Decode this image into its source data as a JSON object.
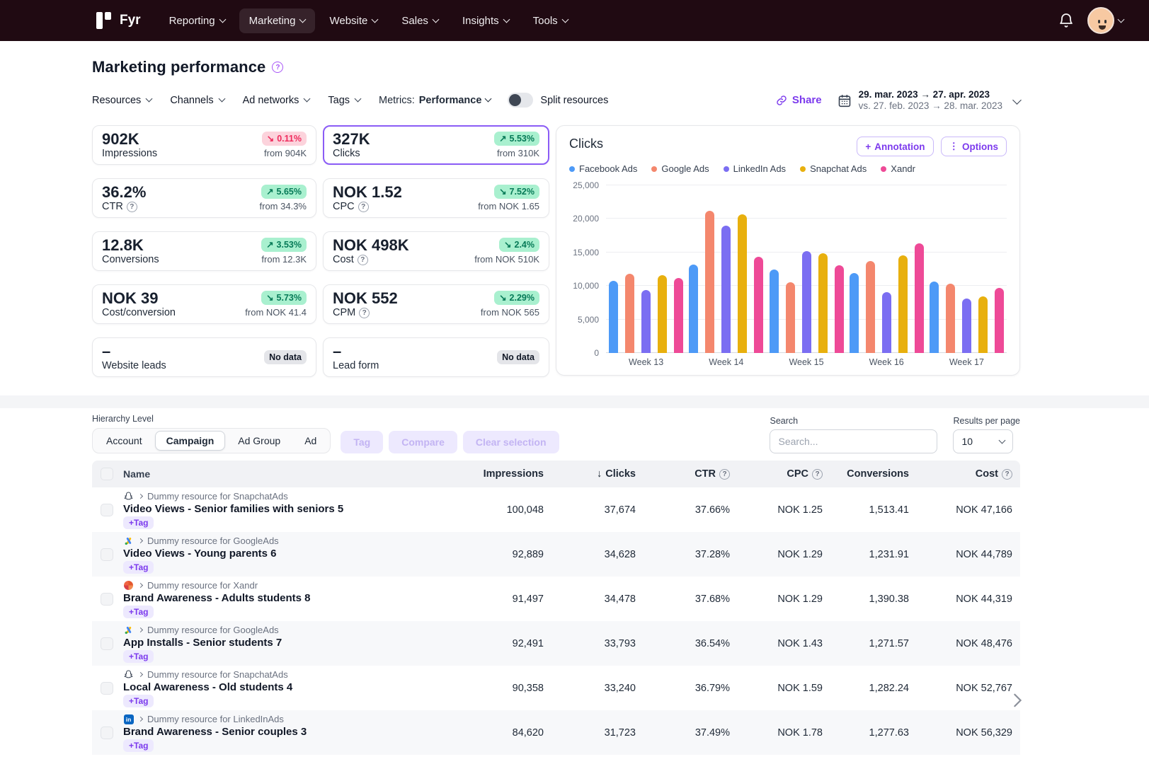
{
  "nav": {
    "brand": "Fyr",
    "items": [
      {
        "label": "Reporting"
      },
      {
        "label": "Marketing",
        "active": true
      },
      {
        "label": "Website"
      },
      {
        "label": "Sales"
      },
      {
        "label": "Insights"
      },
      {
        "label": "Tools"
      }
    ]
  },
  "page": {
    "title": "Marketing performance"
  },
  "filters": {
    "dropdowns": [
      "Resources",
      "Channels",
      "Ad networks",
      "Tags"
    ],
    "metrics_label": "Metrics:",
    "metrics_value": "Performance",
    "split_label": "Split resources",
    "share_label": "Share",
    "date_primary": "29. mar. 2023 → 27. apr. 2023",
    "date_secondary": "vs. 27. feb. 2023 → 28. mar. 2023"
  },
  "kpis": {
    "col1": [
      {
        "value": "902K",
        "label": "Impressions",
        "badge": "0.11%",
        "dir": "down",
        "tone": "red",
        "from": "from 904K"
      },
      {
        "value": "36.2%",
        "label": "CTR",
        "help": true,
        "badge": "5.65%",
        "dir": "up",
        "tone": "green",
        "from": "from 34.3%"
      },
      {
        "value": "12.8K",
        "label": "Conversions",
        "badge": "3.53%",
        "dir": "up",
        "tone": "green",
        "from": "from 12.3K"
      },
      {
        "value": "NOK 39",
        "label": "Cost/conversion",
        "badge": "5.73%",
        "dir": "down",
        "tone": "green",
        "from": "from NOK 41.4"
      },
      {
        "value": "–",
        "label": "Website leads",
        "badge": "No data",
        "nodata": true
      }
    ],
    "col2": [
      {
        "value": "327K",
        "label": "Clicks",
        "selected": true,
        "badge": "5.53%",
        "dir": "up",
        "tone": "green",
        "from": "from 310K"
      },
      {
        "value": "NOK 1.52",
        "label": "CPC",
        "help": true,
        "badge": "7.52%",
        "dir": "down",
        "tone": "green",
        "from": "from NOK 1.65"
      },
      {
        "value": "NOK 498K",
        "label": "Cost",
        "help": true,
        "badge": "2.4%",
        "dir": "down",
        "tone": "green",
        "from": "from NOK 510K"
      },
      {
        "value": "NOK 552",
        "label": "CPM",
        "help": true,
        "badge": "2.29%",
        "dir": "down",
        "tone": "green",
        "from": "from NOK 565"
      },
      {
        "value": "–",
        "label": "Lead form",
        "badge": "No data",
        "nodata": true
      }
    ]
  },
  "chart": {
    "annotation_label": "Annotation",
    "options_label": "Options"
  },
  "chart_data": {
    "type": "bar",
    "title": "Clicks",
    "categories": [
      "Week 13",
      "Week 14",
      "Week 15",
      "Week 16",
      "Week 17"
    ],
    "series": [
      {
        "name": "Facebook Ads",
        "color": "#4d9af7",
        "values": [
          10800,
          13200,
          12500,
          11900,
          10700
        ]
      },
      {
        "name": "Google Ads",
        "color": "#f4876d",
        "values": [
          11800,
          21200,
          10600,
          13700,
          10300
        ]
      },
      {
        "name": "LinkedIn Ads",
        "color": "#7b6ef2",
        "values": [
          9400,
          19000,
          15200,
          9100,
          8100
        ]
      },
      {
        "name": "Snapchat Ads",
        "color": "#e8b00e",
        "values": [
          11600,
          20700,
          14900,
          14600,
          8400
        ]
      },
      {
        "name": "Xandr",
        "color": "#ee4a97",
        "values": [
          11200,
          14400,
          13100,
          16300,
          9700
        ]
      }
    ],
    "ylim": [
      0,
      25000
    ],
    "yticks": [
      "25,000",
      "20,000",
      "15,000",
      "10,000",
      "5,000",
      "0"
    ],
    "grid": true,
    "legend_position": "top"
  },
  "table": {
    "hierarchy_label": "Hierarchy Level",
    "levels": [
      "Account",
      "Campaign",
      "Ad Group",
      "Ad"
    ],
    "active_level": "Campaign",
    "action_buttons": [
      "Tag",
      "Compare",
      "Clear selection"
    ],
    "search_label": "Search",
    "search_placeholder": "Search...",
    "rpp_label": "Results per page",
    "rpp_value": "10",
    "tag_label": "+Tag",
    "columns": [
      {
        "label": "Name"
      },
      {
        "label": "Impressions",
        "num": true
      },
      {
        "label": "Clicks",
        "num": true,
        "sorted": true
      },
      {
        "label": "CTR",
        "num": true,
        "help": true
      },
      {
        "label": "CPC",
        "num": true,
        "help": true
      },
      {
        "label": "Conversions",
        "num": true
      },
      {
        "label": "Cost",
        "num": true,
        "help": true
      }
    ],
    "rows": [
      {
        "network": "snapchat-icon",
        "breadcrumb": "Dummy resource for SnapchatAds",
        "name": "Video Views - Senior families with seniors 5",
        "impressions": "100,048",
        "clicks": "37,674",
        "ctr": "37.66%",
        "cpc": "NOK 1.25",
        "conversions": "1,513.41",
        "cost": "NOK 47,166"
      },
      {
        "network": "google-ads-icon",
        "breadcrumb": "Dummy resource for GoogleAds",
        "name": "Video Views - Young parents 6",
        "impressions": "92,889",
        "clicks": "34,628",
        "ctr": "37.28%",
        "cpc": "NOK 1.29",
        "conversions": "1,231.91",
        "cost": "NOK 44,789"
      },
      {
        "network": "xandr-icon",
        "breadcrumb": "Dummy resource for Xandr",
        "name": "Brand Awareness - Adults students 8",
        "impressions": "91,497",
        "clicks": "34,478",
        "ctr": "37.68%",
        "cpc": "NOK 1.29",
        "conversions": "1,390.38",
        "cost": "NOK 44,319"
      },
      {
        "network": "google-ads-icon",
        "breadcrumb": "Dummy resource for GoogleAds",
        "name": "App Installs - Senior students 7",
        "impressions": "92,491",
        "clicks": "33,793",
        "ctr": "36.54%",
        "cpc": "NOK 1.43",
        "conversions": "1,271.57",
        "cost": "NOK 48,476"
      },
      {
        "network": "snapchat-icon",
        "breadcrumb": "Dummy resource for SnapchatAds",
        "name": "Local Awareness - Old students 4",
        "impressions": "90,358",
        "clicks": "33,240",
        "ctr": "36.79%",
        "cpc": "NOK 1.59",
        "conversions": "1,282.24",
        "cost": "NOK 52,767"
      },
      {
        "network": "linkedin-icon",
        "breadcrumb": "Dummy resource for LinkedInAds",
        "name": "Brand Awareness - Senior couples 3",
        "impressions": "84,620",
        "clicks": "31,723",
        "ctr": "37.49%",
        "cpc": "NOK 1.78",
        "conversions": "1,277.63",
        "cost": "NOK 56,329"
      }
    ]
  }
}
